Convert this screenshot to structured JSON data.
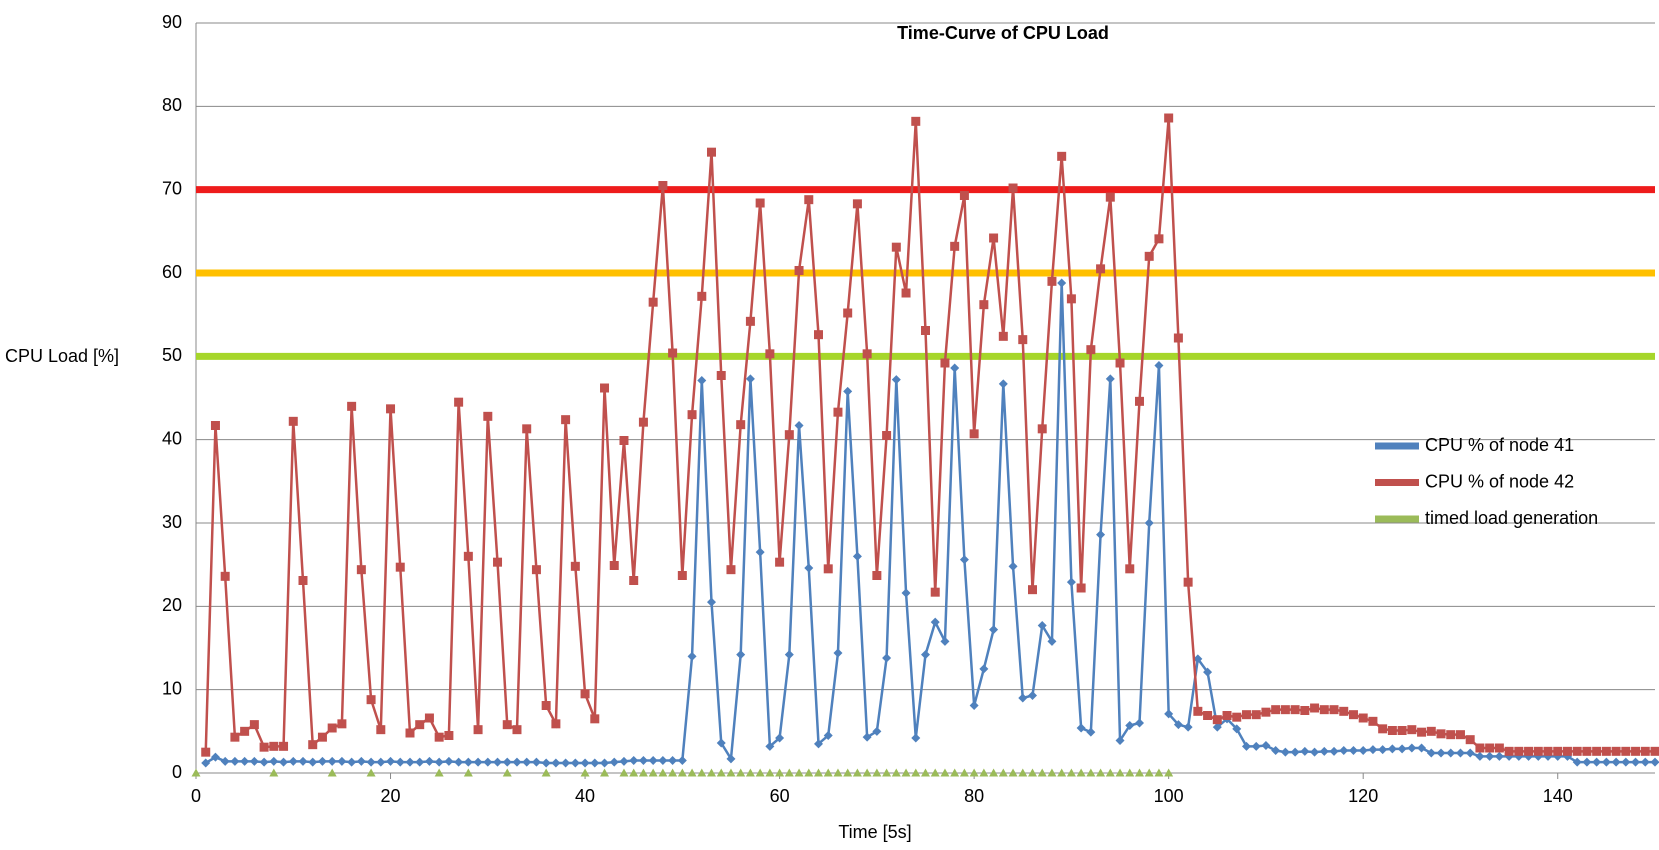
{
  "chart_data": {
    "type": "line",
    "title": "Time-Curve of CPU Load",
    "x_label": "Time [5s]",
    "y_label": "CPU Load [%]",
    "x": [
      1,
      2,
      3,
      4,
      5,
      6,
      7,
      8,
      9,
      10,
      11,
      12,
      13,
      14,
      15,
      16,
      17,
      18,
      19,
      20,
      21,
      22,
      23,
      24,
      25,
      26,
      27,
      28,
      29,
      30,
      31,
      32,
      33,
      34,
      35,
      36,
      37,
      38,
      39,
      40,
      41,
      42,
      43,
      44,
      45,
      46,
      47,
      48,
      49,
      50,
      51,
      52,
      53,
      54,
      55,
      56,
      57,
      58,
      59,
      60,
      61,
      62,
      63,
      64,
      65,
      66,
      67,
      68,
      69,
      70,
      71,
      72,
      73,
      74,
      75,
      76,
      77,
      78,
      79,
      80,
      81,
      82,
      83,
      84,
      85,
      86,
      87,
      88,
      89,
      90,
      91,
      92,
      93,
      94,
      95,
      96,
      97,
      98,
      99,
      100,
      101,
      102,
      103,
      104,
      105,
      106,
      107,
      108,
      109,
      110,
      111,
      112,
      113,
      114,
      115,
      116,
      117,
      118,
      119,
      120,
      121,
      122,
      123,
      124,
      125,
      126,
      127,
      128,
      129,
      130,
      131,
      132,
      133,
      134,
      135,
      136,
      137,
      138,
      139,
      140,
      141,
      142,
      143,
      144,
      145,
      146,
      147,
      148,
      149,
      150
    ],
    "series": [
      {
        "name": "CPU % of node 41",
        "color": "#4f81bd",
        "marker": "diamond",
        "values": [
          1.2,
          1.9,
          1.4,
          1.4,
          1.4,
          1.4,
          1.3,
          1.4,
          1.3,
          1.4,
          1.4,
          1.3,
          1.4,
          1.4,
          1.4,
          1.3,
          1.4,
          1.3,
          1.3,
          1.4,
          1.3,
          1.3,
          1.3,
          1.4,
          1.3,
          1.4,
          1.3,
          1.3,
          1.3,
          1.3,
          1.3,
          1.3,
          1.3,
          1.3,
          1.3,
          1.2,
          1.2,
          1.2,
          1.2,
          1.2,
          1.2,
          1.2,
          1.3,
          1.4,
          1.5,
          1.5,
          1.5,
          1.5,
          1.5,
          1.5,
          14,
          47.1,
          20.5,
          3.6,
          1.7,
          14.2,
          47.3,
          26.5,
          3.2,
          4.2,
          14.2,
          41.7,
          24.6,
          3.5,
          4.5,
          14.4,
          45.8,
          26,
          4.3,
          5,
          13.8,
          47.2,
          21.6,
          4.2,
          14.2,
          18.1,
          15.8,
          48.6,
          25.6,
          8.1,
          12.5,
          17.2,
          46.7,
          24.8,
          9,
          9.3,
          17.7,
          15.8,
          58.8,
          22.9,
          5.4,
          4.9,
          28.6,
          47.3,
          3.9,
          5.7,
          6,
          30,
          48.9,
          7.1,
          5.8,
          5.5,
          13.7,
          12.1,
          5.5,
          6.5,
          5.3,
          3.2,
          3.2,
          3.3,
          2.7,
          2.5,
          2.5,
          2.6,
          2.5,
          2.6,
          2.6,
          2.7,
          2.7,
          2.7,
          2.8,
          2.8,
          2.9,
          2.9,
          3,
          3,
          2.4,
          2.4,
          2.4,
          2.4,
          2.4,
          2,
          2,
          2,
          2,
          2,
          2,
          2,
          2,
          2,
          2,
          1.3,
          1.3,
          1.3,
          1.3,
          1.3,
          1.3,
          1.3,
          1.3,
          1.3
        ]
      },
      {
        "name": "CPU % of node 42",
        "color": "#c0504d",
        "marker": "square",
        "values": [
          2.5,
          41.7,
          23.6,
          4.3,
          5,
          5.8,
          3.1,
          3.2,
          3.2,
          42.2,
          23.1,
          3.4,
          4.3,
          5.4,
          5.9,
          44,
          24.4,
          8.8,
          5.2,
          43.7,
          24.7,
          4.8,
          5.8,
          6.6,
          4.3,
          4.5,
          44.5,
          26,
          5.2,
          42.8,
          25.3,
          5.8,
          5.2,
          41.3,
          24.4,
          8.1,
          5.9,
          42.4,
          24.8,
          9.5,
          6.5,
          46.2,
          24.9,
          39.9,
          23.1,
          42.1,
          56.5,
          70.5,
          50.4,
          23.7,
          43,
          57.2,
          74.5,
          47.7,
          24.4,
          41.8,
          54.2,
          68.4,
          50.3,
          25.3,
          40.6,
          60.3,
          68.8,
          52.6,
          24.5,
          43.3,
          55.2,
          68.3,
          50.3,
          23.7,
          40.5,
          63.1,
          57.6,
          78.2,
          53.1,
          21.7,
          49.2,
          63.2,
          69.3,
          40.7,
          56.2,
          64.2,
          52.4,
          70.2,
          52,
          22,
          41.3,
          59,
          74,
          56.9,
          22.2,
          50.8,
          60.5,
          69.1,
          49.2,
          24.5,
          44.6,
          62,
          64.1,
          78.6,
          52.2,
          22.9,
          7.4,
          6.9,
          6.4,
          6.9,
          6.7,
          7,
          7,
          7.3,
          7.6,
          7.6,
          7.6,
          7.5,
          7.8,
          7.6,
          7.6,
          7.4,
          7,
          6.6,
          6.2,
          5.3,
          5.1,
          5.1,
          5.2,
          4.9,
          5,
          4.7,
          4.6,
          4.6,
          4,
          3,
          3,
          3,
          2.6,
          2.6,
          2.6,
          2.6,
          2.6,
          2.6,
          2.6,
          2.6,
          2.6,
          2.6,
          2.6,
          2.6,
          2.6,
          2.6,
          2.6,
          2.6
        ]
      },
      {
        "name": "timed load generation",
        "color": "#9bbb59",
        "marker": "triangle",
        "line": false,
        "x": [
          0,
          8,
          14,
          18,
          25,
          28,
          32,
          36,
          40,
          42,
          44,
          45,
          46,
          47,
          48,
          49,
          50,
          51,
          52,
          53,
          54,
          55,
          56,
          57,
          58,
          59,
          60,
          61,
          62,
          63,
          64,
          65,
          66,
          67,
          68,
          69,
          70,
          71,
          72,
          73,
          74,
          75,
          76,
          77,
          78,
          79,
          80,
          81,
          82,
          83,
          84,
          85,
          86,
          87,
          88,
          89,
          90,
          91,
          92,
          93,
          94,
          95,
          96,
          97,
          98,
          99,
          100
        ],
        "values": [
          0,
          0,
          0,
          0,
          0,
          0,
          0,
          0,
          0,
          0,
          0,
          0,
          0,
          0,
          0,
          0,
          0,
          0,
          0,
          0,
          0,
          0,
          0,
          0,
          0,
          0,
          0,
          0,
          0,
          0,
          0,
          0,
          0,
          0,
          0,
          0,
          0,
          0,
          0,
          0,
          0,
          0,
          0,
          0,
          0,
          0,
          0,
          0,
          0,
          0,
          0,
          0,
          0,
          0,
          0,
          0,
          0,
          0,
          0,
          0,
          0,
          0,
          0,
          0,
          0,
          0,
          0
        ]
      }
    ],
    "reference_lines": [
      {
        "value": 70,
        "color": "#ee1c1c"
      },
      {
        "value": 60,
        "color": "#ffc000"
      },
      {
        "value": 50,
        "color": "#a6d62a"
      }
    ],
    "xlim": [
      0,
      150
    ],
    "xticks": [
      0,
      20,
      40,
      60,
      80,
      100,
      120,
      140
    ],
    "ylim": [
      0,
      90
    ],
    "yticks": [
      0,
      10,
      20,
      30,
      40,
      50,
      60,
      70,
      80,
      90
    ],
    "grid": true,
    "legend": "right"
  }
}
